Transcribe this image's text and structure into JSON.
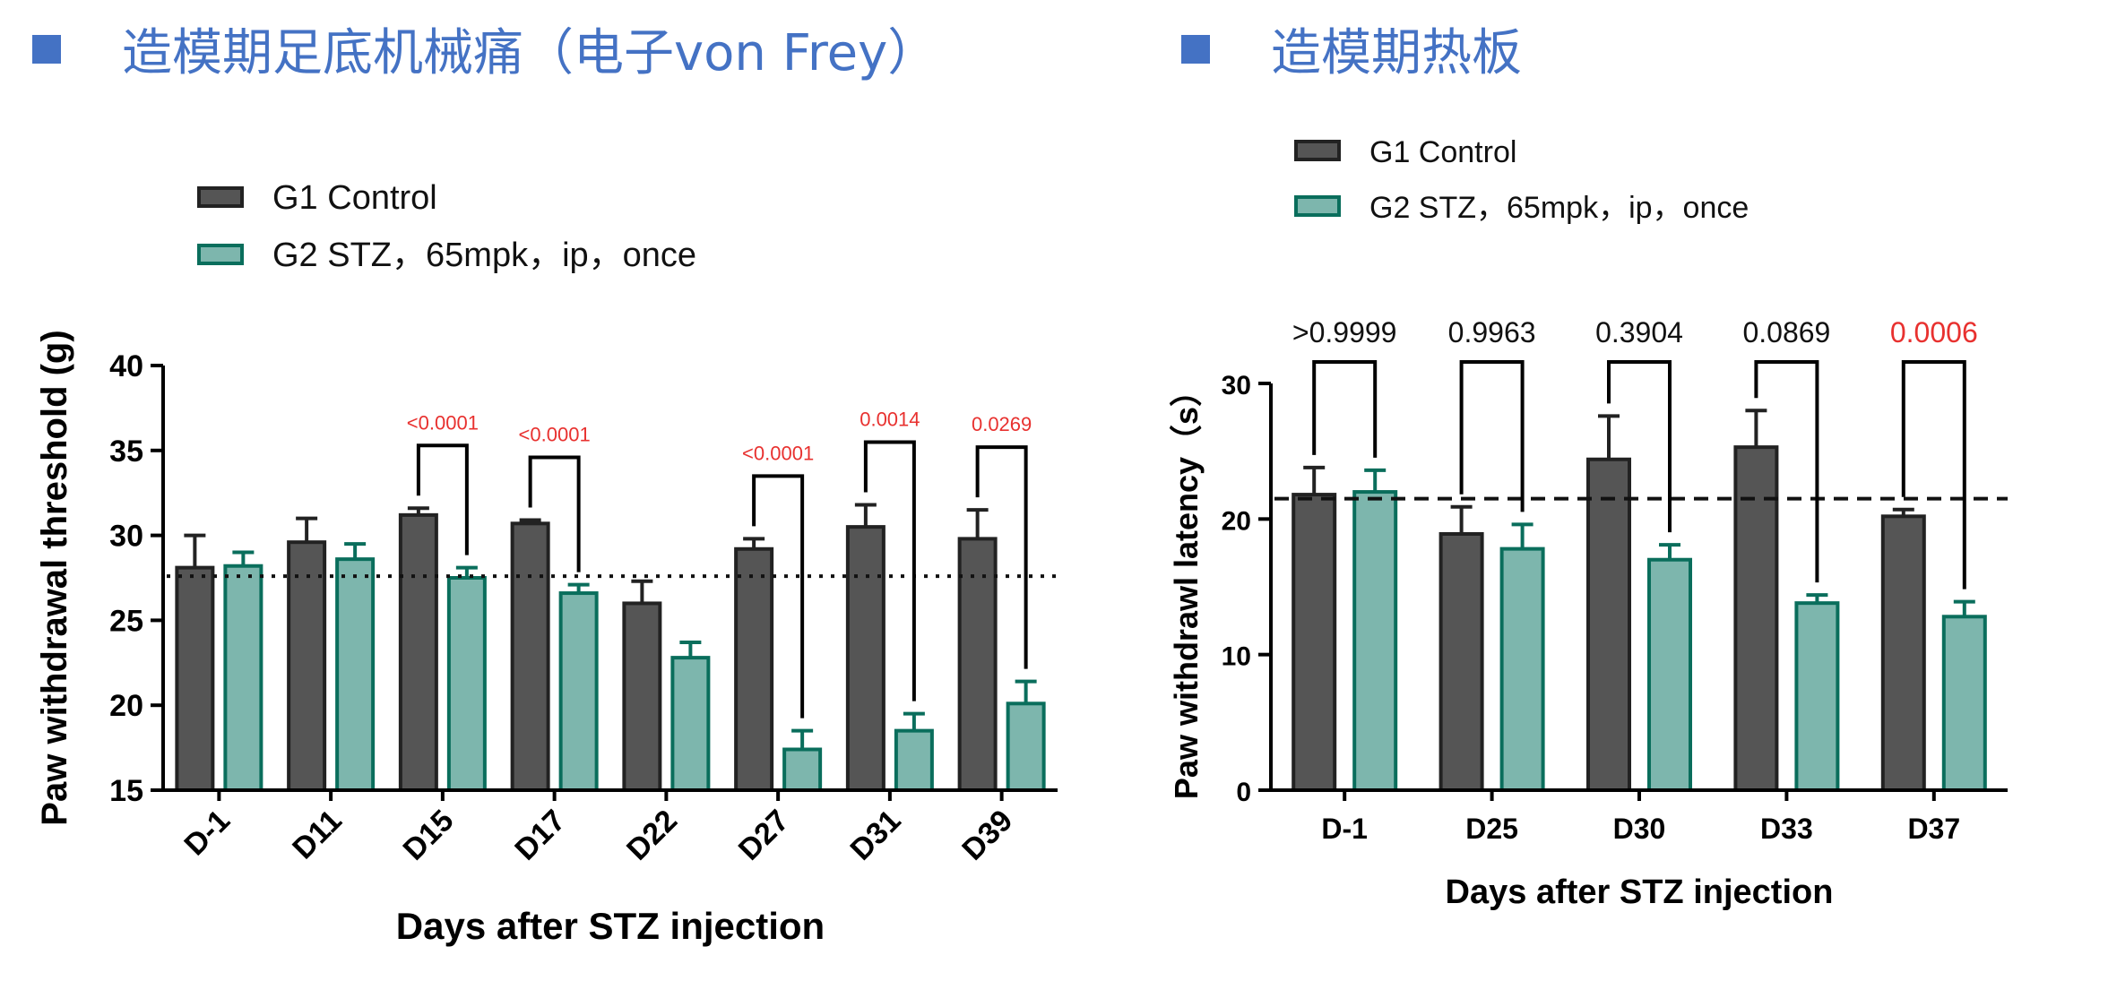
{
  "slide": {
    "left_title": "造模期足底机械痛（电子von Frey）",
    "right_title": "造模期热板"
  },
  "colors": {
    "title": "#4472C4",
    "control_fill": "#555555",
    "stz_fill": "#7DB6AD",
    "stz_stroke": "#0A6E5C",
    "significant": "#E8312F"
  },
  "chart_data": [
    {
      "type": "bar",
      "title": "",
      "xlabel": "Days after STZ injection",
      "ylabel": "Paw withdrawal threshold (g)",
      "ylim": [
        15,
        40
      ],
      "yticks": [
        "15",
        "20",
        "25",
        "30",
        "35",
        "40"
      ],
      "categories": [
        "D-1",
        "D11",
        "D15",
        "D17",
        "D22",
        "D27",
        "D31",
        "D39"
      ],
      "series": [
        {
          "name": "G1 Control",
          "values": [
            28.1,
            29.6,
            31.2,
            30.7,
            26.0,
            29.2,
            30.5,
            29.8
          ],
          "err": [
            1.9,
            1.4,
            0.4,
            0.2,
            1.3,
            0.6,
            1.3,
            1.7
          ]
        },
        {
          "name": "G2 STZ，65mpk，ip，once",
          "values": [
            28.2,
            28.6,
            27.5,
            26.6,
            22.8,
            17.4,
            18.5,
            20.1
          ],
          "err": [
            0.8,
            0.9,
            0.6,
            0.5,
            0.9,
            1.1,
            1.0,
            1.3
          ]
        }
      ],
      "reference_line": {
        "value": 27.6,
        "style": "dotted"
      },
      "comparisons": [
        {
          "category": "D15",
          "label": "<0.0001",
          "significant": true
        },
        {
          "category": "D17",
          "label": "<0.0001",
          "significant": true
        },
        {
          "category": "D27",
          "label": "<0.0001",
          "significant": true
        },
        {
          "category": "D31",
          "label": "0.0014",
          "significant": true
        },
        {
          "category": "D39",
          "label": "0.0269",
          "significant": true
        }
      ],
      "legend": "top-left"
    },
    {
      "type": "bar",
      "title": "",
      "xlabel": "Days after STZ injection",
      "ylabel": "Paw withdrawl latency（s）",
      "ylim": [
        0,
        30
      ],
      "yticks": [
        "0",
        "10",
        "20",
        "30"
      ],
      "categories": [
        "D-1",
        "D25",
        "D30",
        "D33",
        "D37"
      ],
      "series": [
        {
          "name": "G1 Control",
          "values": [
            21.8,
            18.9,
            24.4,
            25.3,
            20.2
          ],
          "err": [
            2.0,
            2.0,
            3.2,
            2.7,
            0.5
          ]
        },
        {
          "name": "G2 STZ，65mpk，ip，once",
          "values": [
            22.0,
            17.8,
            17.0,
            13.8,
            12.8
          ],
          "err": [
            1.6,
            1.8,
            1.1,
            0.6,
            1.1
          ]
        }
      ],
      "reference_line": {
        "value": 21.5,
        "style": "dashed"
      },
      "comparisons": [
        {
          "category": "D-1",
          "label": ">0.9999",
          "significant": false
        },
        {
          "category": "D25",
          "label": "0.9963",
          "significant": false
        },
        {
          "category": "D30",
          "label": "0.3904",
          "significant": false
        },
        {
          "category": "D33",
          "label": "0.0869",
          "significant": false
        },
        {
          "category": "D37",
          "label": "0.0006",
          "significant": true
        }
      ],
      "legend": "top-left"
    }
  ]
}
